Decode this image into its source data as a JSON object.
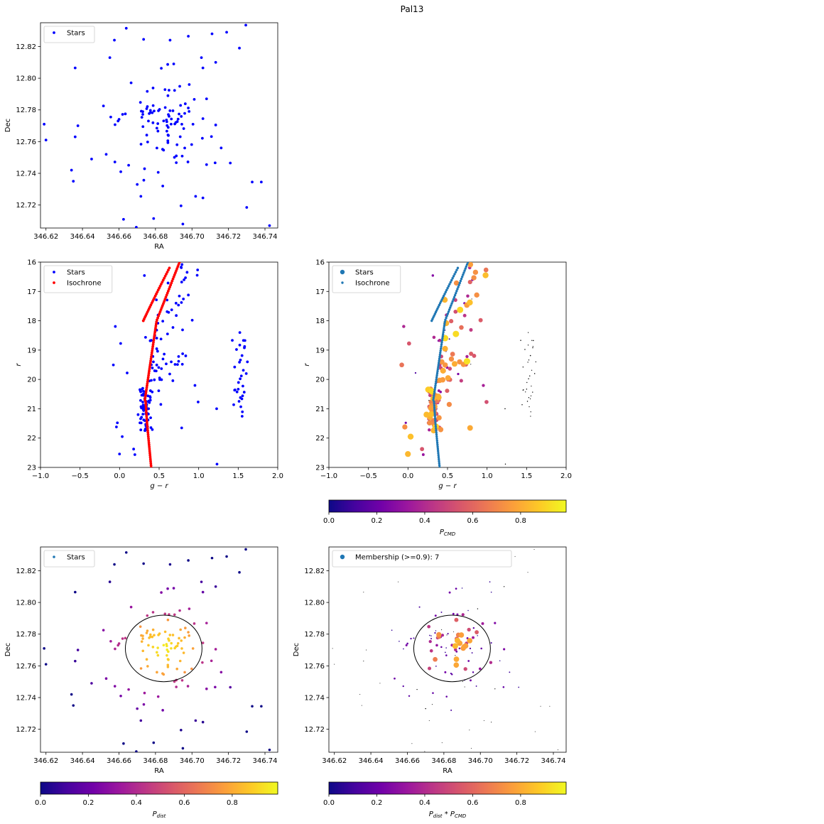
{
  "figure": {
    "title": "Pal13",
    "colormap_stops": [
      "#0d0887",
      "#46039f",
      "#7201a8",
      "#9c179e",
      "#bd3786",
      "#d8576b",
      "#ed7953",
      "#fb9f3a",
      "#fdca26",
      "#f0f921"
    ]
  },
  "chart_data": [
    {
      "id": "sky-raw",
      "type": "scatter",
      "xlabel": "RA",
      "ylabel": "Dec",
      "xlim": [
        346.617,
        346.747
      ],
      "ylim": [
        12.7055,
        12.835
      ],
      "xticks": [
        "346.62",
        "346.64",
        "346.66",
        "346.68",
        "346.70",
        "346.72",
        "346.74"
      ],
      "yticks": [
        "12.72",
        "12.74",
        "12.76",
        "12.78",
        "12.80",
        "12.82"
      ],
      "legend": [
        "Stars"
      ],
      "legend_position": "upper left",
      "series": [
        {
          "name": "Stars",
          "color": "#0000ff"
        }
      ]
    },
    {
      "id": "cmd-raw",
      "type": "scatter",
      "xlabel": "g − r",
      "ylabel": "r",
      "xlim": [
        -1.0,
        2.0
      ],
      "ylim": [
        23,
        16
      ],
      "y_inverted": true,
      "xticks": [
        "−1.0",
        "−0.5",
        "0.0",
        "0.5",
        "1.0",
        "1.5",
        "2.0"
      ],
      "yticks": [
        "16",
        "17",
        "18",
        "19",
        "20",
        "21",
        "22",
        "23"
      ],
      "legend": [
        "Stars",
        "Isochrone"
      ],
      "legend_position": "upper left",
      "series": [
        {
          "name": "Stars",
          "color": "#0000ff"
        },
        {
          "name": "Isochrone",
          "color": "#ff0000"
        }
      ]
    },
    {
      "id": "cmd-prob",
      "type": "scatter",
      "xlabel": "g − r",
      "ylabel": "r",
      "xlim": [
        -1.0,
        2.0
      ],
      "ylim": [
        23,
        16
      ],
      "y_inverted": true,
      "xticks": [
        "−1.0",
        "−0.5",
        "0.0",
        "0.5",
        "1.0",
        "1.5",
        "2.0"
      ],
      "yticks": [
        "16",
        "17",
        "18",
        "19",
        "20",
        "21",
        "22",
        "23"
      ],
      "legend": [
        "Stars",
        "Isochrone"
      ],
      "legend_position": "upper left",
      "series": [
        {
          "name": "Stars",
          "color": "plasma"
        },
        {
          "name": "Isochrone",
          "color": "#1f77b4"
        }
      ],
      "colorbar": {
        "label_main": "P",
        "label_sub": "CMD",
        "ticks": [
          "0.0",
          "0.2",
          "0.4",
          "0.6",
          "0.8"
        ]
      }
    },
    {
      "id": "sky-dist",
      "type": "scatter",
      "xlabel": "RA",
      "ylabel": "Dec",
      "xlim": [
        346.617,
        346.747
      ],
      "ylim": [
        12.7055,
        12.835
      ],
      "xticks": [
        "346.62",
        "346.64",
        "346.66",
        "346.68",
        "346.70",
        "346.72",
        "346.74"
      ],
      "yticks": [
        "12.72",
        "12.74",
        "12.76",
        "12.78",
        "12.80",
        "12.82"
      ],
      "legend": [
        "Stars"
      ],
      "legend_position": "upper left",
      "circle": {
        "center": [
          346.6845,
          12.771
        ],
        "radius": 0.021
      },
      "series": [
        {
          "name": "Stars",
          "color": "plasma"
        }
      ],
      "colorbar": {
        "label_main": "P",
        "label_sub": "dist",
        "ticks": [
          "0.0",
          "0.2",
          "0.4",
          "0.6",
          "0.8"
        ]
      }
    },
    {
      "id": "sky-member",
      "type": "scatter",
      "xlabel": "RA",
      "ylabel": "Dec",
      "xlim": [
        346.617,
        346.747
      ],
      "ylim": [
        12.7055,
        12.835
      ],
      "xticks": [
        "346.62",
        "346.64",
        "346.66",
        "346.68",
        "346.70",
        "346.72",
        "346.74"
      ],
      "yticks": [
        "12.72",
        "12.74",
        "12.76",
        "12.78",
        "12.80",
        "12.82"
      ],
      "legend": [
        "Membership (>=0.9): 7"
      ],
      "legend_position": "upper left",
      "circle": {
        "center": [
          346.6845,
          12.771
        ],
        "radius": 0.021
      },
      "series": [
        {
          "name": "Membership (>=0.9): 7",
          "color": "plasma"
        }
      ],
      "colorbar": {
        "label_main": "P",
        "label_sub": "dist",
        "label_main2": " * P",
        "label_sub2": "CMD",
        "ticks": [
          "0.0",
          "0.2",
          "0.4",
          "0.6",
          "0.8"
        ]
      }
    }
  ]
}
